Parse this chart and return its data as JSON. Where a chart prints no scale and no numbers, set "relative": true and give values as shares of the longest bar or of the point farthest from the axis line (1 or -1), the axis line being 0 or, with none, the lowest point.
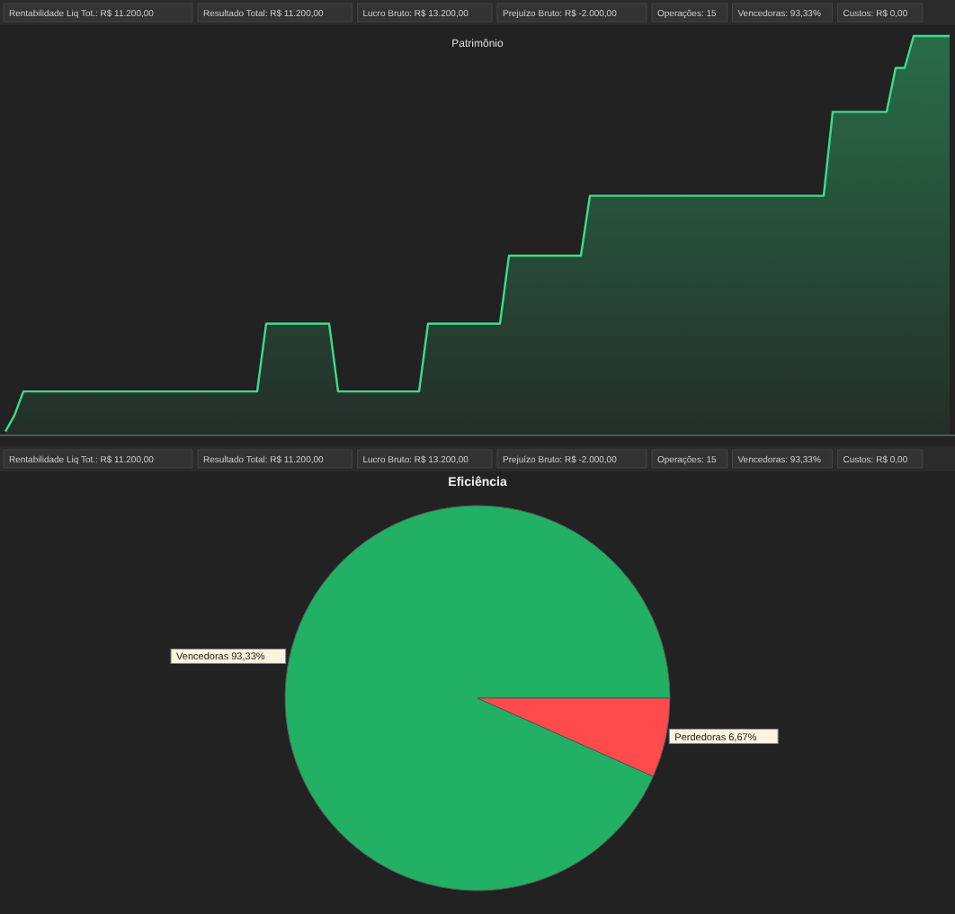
{
  "chart_data": [
    {
      "type": "area",
      "title": "Patrimônio",
      "relative": true,
      "categories": [
        null,
        null,
        null,
        null,
        null,
        null,
        null,
        null,
        null,
        null,
        null,
        null,
        null,
        null,
        null,
        null,
        null,
        null,
        null,
        null,
        null,
        null,
        null,
        null,
        null,
        null,
        null,
        null,
        null,
        null,
        null,
        null,
        null,
        null,
        null,
        null,
        null,
        null,
        null,
        null,
        null,
        null,
        null,
        null,
        null,
        null,
        null,
        null,
        null,
        null,
        null,
        null,
        null,
        null,
        null,
        null,
        null,
        null,
        null,
        null,
        null,
        null,
        null,
        null,
        null,
        null,
        null,
        null,
        null,
        null,
        null,
        null,
        null,
        null,
        null,
        null,
        null,
        null,
        null,
        null,
        null,
        null,
        null,
        null,
        null,
        null,
        null,
        null,
        null,
        null,
        null,
        null,
        null,
        null,
        null,
        null,
        null,
        null,
        null,
        null,
        null,
        null,
        null,
        null,
        null,
        null
      ],
      "series": [
        {
          "color": "#3ddc8c",
          "values": [
            0.01,
            0.05,
            0.11,
            0.11,
            0.11,
            0.11,
            0.11,
            0.11,
            0.11,
            0.11,
            0.11,
            0.11,
            0.11,
            0.11,
            0.11,
            0.11,
            0.11,
            0.11,
            0.11,
            0.11,
            0.11,
            0.11,
            0.11,
            0.11,
            0.11,
            0.11,
            0.11,
            0.11,
            0.11,
            0.28,
            0.28,
            0.28,
            0.28,
            0.28,
            0.28,
            0.28,
            0.28,
            0.11,
            0.11,
            0.11,
            0.11,
            0.11,
            0.11,
            0.11,
            0.11,
            0.11,
            0.11,
            0.28,
            0.28,
            0.28,
            0.28,
            0.28,
            0.28,
            0.28,
            0.28,
            0.28,
            0.45,
            0.45,
            0.45,
            0.45,
            0.45,
            0.45,
            0.45,
            0.45,
            0.45,
            0.6,
            0.6,
            0.6,
            0.6,
            0.6,
            0.6,
            0.6,
            0.6,
            0.6,
            0.6,
            0.6,
            0.6,
            0.6,
            0.6,
            0.6,
            0.6,
            0.6,
            0.6,
            0.6,
            0.6,
            0.6,
            0.6,
            0.6,
            0.6,
            0.6,
            0.6,
            0.6,
            0.81,
            0.81,
            0.81,
            0.81,
            0.81,
            0.81,
            0.81,
            0.92,
            0.92,
            1,
            1,
            1,
            1,
            1
          ]
        }
      ],
      "annotations": [
        "Rentabilidade Liq Tot.: R$ 11.200,00",
        "Resultado Total: R$ 11.200,00",
        "Lucro Bruto: R$ 13.200,00",
        "Prejuízo Bruto: R$ -2.000,00",
        "Operações: 15",
        "Vencedoras: 93,33%",
        "Custos: R$ 0,00"
      ]
    },
    {
      "type": "pie",
      "title": "Eficiência",
      "categories": [
        "Vencedoras",
        "Perdedoras"
      ],
      "values": [
        93.33,
        6.67
      ],
      "colors": [
        "#21b064",
        "#ff4b4b"
      ],
      "value_labels": [
        "93,33%",
        "6,67%"
      ],
      "annotations": [
        "Rentabilidade Liq Tot.: R$ 11.200,00",
        "Resultado Total: R$ 11.200,00",
        "Lucro Bruto: R$ 13.200,00",
        "Prejuízo Bruto: R$ -2.000,00",
        "Operações: 15",
        "Vencedoras: 93,33%",
        "Custos: R$ 0,00"
      ]
    }
  ]
}
